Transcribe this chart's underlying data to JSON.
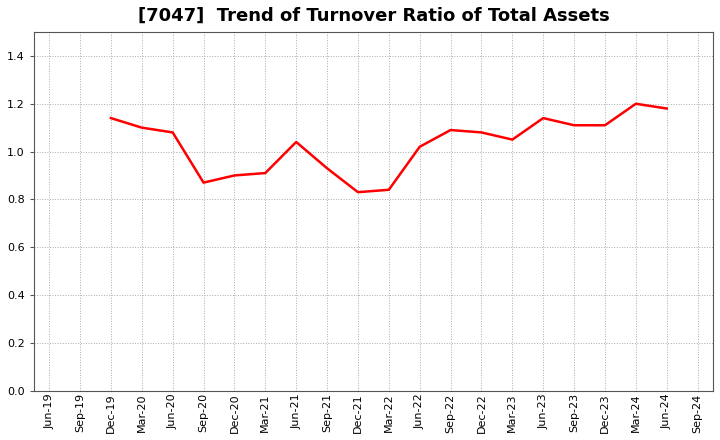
{
  "title": "[7047]  Trend of Turnover Ratio of Total Assets",
  "x_labels": [
    "Jun-19",
    "Sep-19",
    "Dec-19",
    "Mar-20",
    "Jun-20",
    "Sep-20",
    "Dec-20",
    "Mar-21",
    "Jun-21",
    "Sep-21",
    "Dec-21",
    "Mar-22",
    "Jun-22",
    "Sep-22",
    "Dec-22",
    "Mar-23",
    "Jun-23",
    "Sep-23",
    "Dec-23",
    "Mar-24",
    "Jun-24",
    "Sep-24"
  ],
  "values": [
    null,
    null,
    1.14,
    1.1,
    1.08,
    0.87,
    0.9,
    0.91,
    1.04,
    0.93,
    0.83,
    0.84,
    1.02,
    1.09,
    1.08,
    1.05,
    1.14,
    1.11,
    1.11,
    1.2,
    1.18,
    null
  ],
  "line_color": "#ff0000",
  "line_width": 1.8,
  "ylim": [
    0.0,
    1.5
  ],
  "yticks": [
    0.0,
    0.2,
    0.4,
    0.6,
    0.8,
    1.0,
    1.2,
    1.4
  ],
  "grid_color": "#aaaaaa",
  "bg_color": "#ffffff",
  "title_fontsize": 13,
  "tick_fontsize": 8.0,
  "spine_color": "#555555"
}
